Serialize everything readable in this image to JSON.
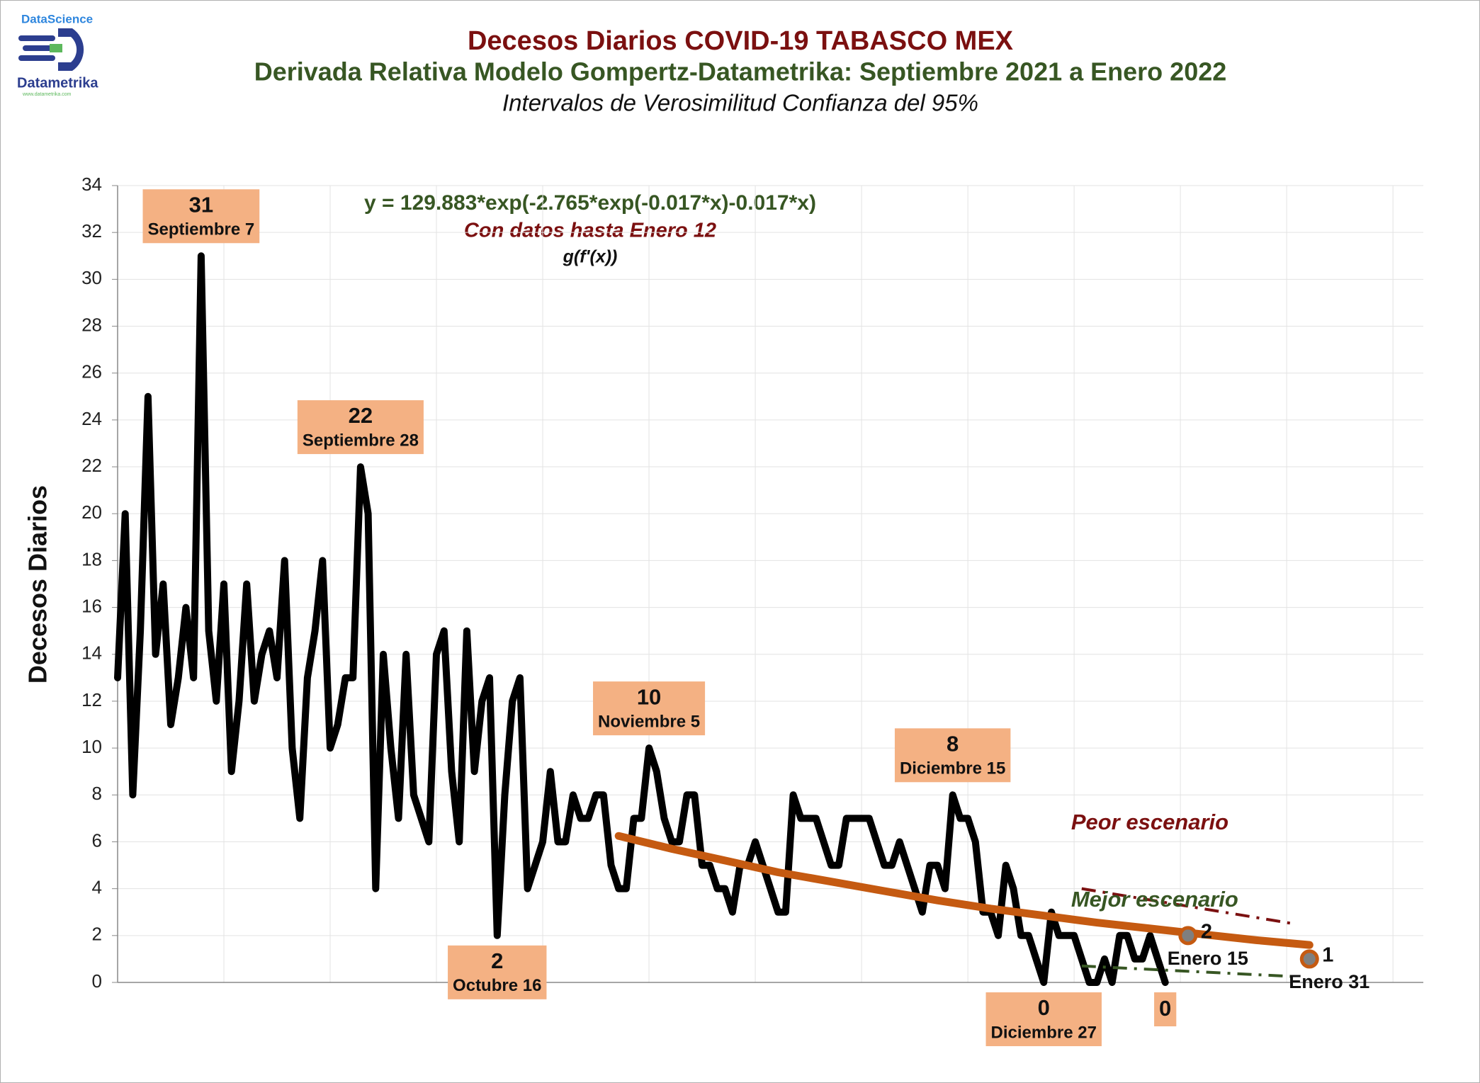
{
  "logo": {
    "top": "DataScience",
    "name": "Datametrika",
    "url": "www.datametrika.com"
  },
  "chart_data": {
    "type": "line",
    "title": "Decesos Diarios COVID-19 TABASCO MEX",
    "subtitle": "Derivada Relativa Modelo Gompertz-Datametrika: Septiembre 2021 a Enero 2022",
    "subtitle2": "Intervalos de Verosimilitud Confianza del 95%",
    "y_label": "Decesos Diarios",
    "equation": "y = 129.883*exp(-2.765*exp(-0.017*x)-0.017*x)",
    "note": "Con datos hasta Enero 12",
    "formula": "g(f'(x))",
    "xlim": [
      0,
      172
    ],
    "xticks": [
      14,
      28,
      42,
      56,
      70,
      84,
      98,
      112,
      126,
      140,
      154,
      168
    ],
    "ylim": [
      0,
      34
    ],
    "yticks": [
      0,
      2,
      4,
      6,
      8,
      10,
      12,
      14,
      16,
      18,
      20,
      22,
      24,
      26,
      28,
      30,
      32,
      34
    ],
    "grid": true,
    "series": [
      {
        "color": "#000000",
        "width": 10,
        "style": "solid",
        "x": [
          0,
          1,
          2,
          3,
          4,
          5,
          6,
          7,
          8,
          9,
          10,
          11,
          12,
          13,
          14,
          15,
          16,
          17,
          18,
          19,
          20,
          21,
          22,
          23,
          24,
          25,
          26,
          27,
          28,
          29,
          30,
          31,
          32,
          33,
          34,
          35,
          36,
          37,
          38,
          39,
          40,
          41,
          42,
          43,
          44,
          45,
          46,
          47,
          48,
          49,
          50,
          51,
          52,
          53,
          54,
          55,
          56,
          57,
          58,
          59,
          60,
          61,
          62,
          63,
          64,
          65,
          66,
          67,
          68,
          69,
          70,
          71,
          72,
          73,
          74,
          75,
          76,
          77,
          78,
          79,
          80,
          81,
          82,
          83,
          84,
          85,
          86,
          87,
          88,
          89,
          90,
          91,
          92,
          93,
          94,
          95,
          96,
          97,
          98,
          99,
          100,
          101,
          102,
          103,
          104,
          105,
          106,
          107,
          108,
          109,
          110,
          111,
          112,
          113,
          114,
          115,
          116,
          117,
          118,
          119,
          120,
          121,
          122,
          123,
          124,
          125,
          126,
          127,
          128,
          129,
          130,
          131,
          132,
          133,
          134,
          135,
          136,
          137,
          138
        ],
        "values": [
          13,
          20,
          8,
          15,
          25,
          14,
          17,
          11,
          13,
          16,
          13,
          31,
          15,
          12,
          17,
          9,
          12,
          17,
          12,
          14,
          15,
          13,
          18,
          10,
          7,
          13,
          15,
          18,
          10,
          11,
          13,
          13,
          22,
          20,
          4,
          14,
          10,
          7,
          14,
          8,
          7,
          6,
          14,
          15,
          9,
          6,
          15,
          9,
          12,
          13,
          2,
          8,
          12,
          13,
          4,
          5,
          6,
          9,
          6,
          6,
          8,
          7,
          7,
          8,
          8,
          5,
          4,
          4,
          7,
          7,
          10,
          9,
          7,
          6,
          6,
          8,
          8,
          5,
          5,
          4,
          4,
          3,
          5,
          5,
          6,
          5,
          4,
          3,
          3,
          8,
          7,
          7,
          7,
          6,
          5,
          5,
          7,
          7,
          7,
          7,
          6,
          5,
          5,
          6,
          5,
          4,
          3,
          5,
          5,
          4,
          8,
          7,
          7,
          6,
          3,
          3,
          2,
          5,
          4,
          2,
          2,
          1,
          0,
          3,
          2,
          2,
          2,
          1,
          0,
          0,
          1,
          0,
          2,
          2,
          1,
          1,
          2,
          1,
          0
        ]
      },
      {
        "color": "#c55a11",
        "width": 11,
        "style": "solid",
        "x": [
          66,
          73,
          80,
          87,
          94,
          101,
          108,
          115,
          122,
          129,
          136,
          143,
          150,
          157
        ],
        "values": [
          6.25,
          5.7,
          5.2,
          4.7,
          4.3,
          3.9,
          3.5,
          3.15,
          2.85,
          2.55,
          2.3,
          2.05,
          1.8,
          1.6
        ]
      },
      {
        "name": "Peor escenario",
        "color": "#7b1010",
        "width": 4,
        "style": "dash-dot",
        "x": [
          127,
          155
        ],
        "values": [
          4,
          2.5
        ]
      },
      {
        "name": "Mejor escenario",
        "color": "#375623",
        "width": 4,
        "style": "dash-dot",
        "x": [
          127,
          155
        ],
        "values": [
          0.7,
          0.25
        ]
      }
    ],
    "forecast": {
      "color": "#c55a11",
      "fill": "#7f7f7f",
      "x": [
        141,
        157
      ],
      "values": [
        2,
        1
      ],
      "dates": [
        "Enero 15",
        "Enero 31"
      ]
    },
    "annotations": [
      {
        "x": 11,
        "value": 31,
        "date": "Septiembre 7",
        "position": "above"
      },
      {
        "x": 32,
        "value": 22,
        "date": "Septiembre 28",
        "position": "above"
      },
      {
        "x": 50,
        "value": 2,
        "date": "Octubre 16",
        "position": "below"
      },
      {
        "x": 70,
        "value": 10,
        "date": "Noviembre 5",
        "position": "above"
      },
      {
        "x": 110,
        "value": 8,
        "date": "Diciembre 15",
        "position": "above"
      },
      {
        "x": 122,
        "value": 0,
        "date": "Diciembre 27",
        "position": "below"
      },
      {
        "x": 138,
        "value": 0,
        "position": "below"
      }
    ],
    "box_color": "#f4b183"
  }
}
